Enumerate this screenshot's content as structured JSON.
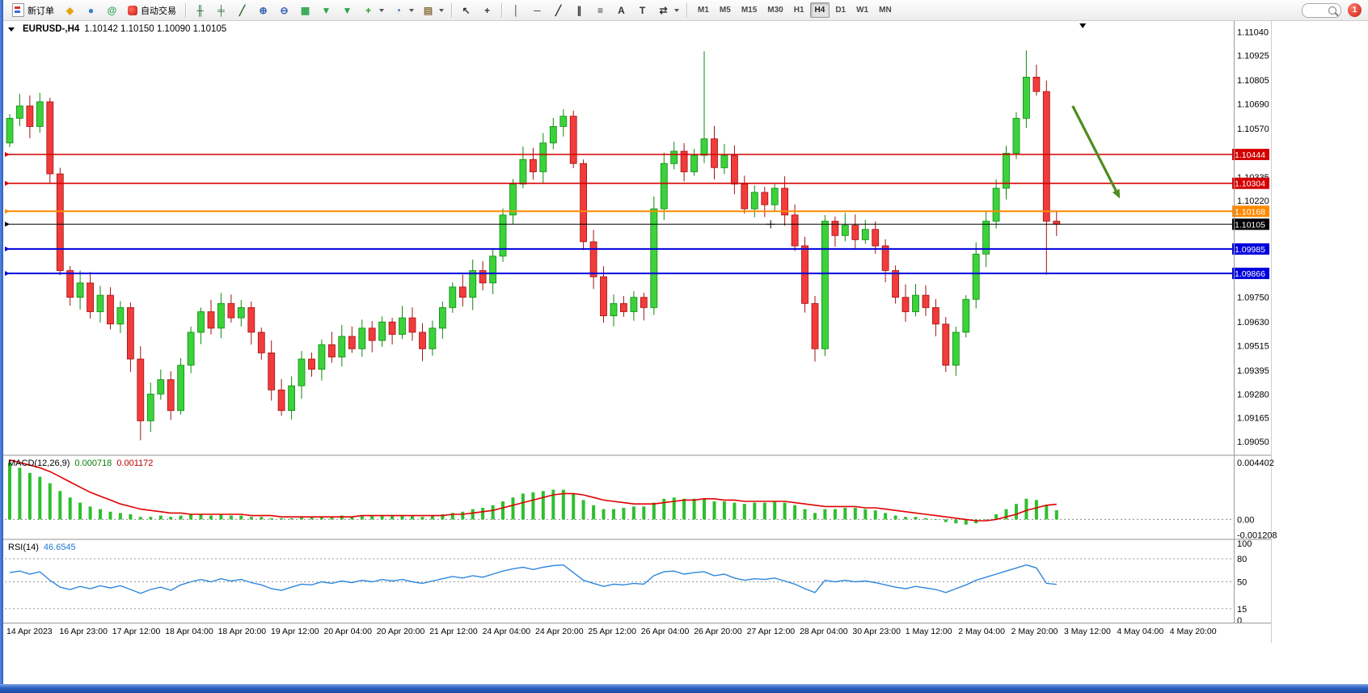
{
  "toolbar": {
    "new_order_label": "新订单",
    "autotrading_label": "自动交易",
    "quick_icons": [
      {
        "name": "metaeditor-icon",
        "glyph": "◆",
        "color": "#e3a50e"
      },
      {
        "name": "signals-icon",
        "glyph": "●",
        "color": "#2d7dd2"
      },
      {
        "name": "community-icon",
        "glyph": "@",
        "color": "#2da44e"
      }
    ],
    "chart_tools": [
      {
        "name": "bar-chart-icon",
        "glyph": "╫",
        "color": "#2f6b2f"
      },
      {
        "name": "candlestick-icon",
        "glyph": "╪",
        "color": "#2f6b2f"
      },
      {
        "name": "line-chart-icon",
        "glyph": "╱",
        "color": "#2f6b2f"
      },
      {
        "name": "zoom-in-icon",
        "glyph": "⊕",
        "color": "#2d5fb0"
      },
      {
        "name": "zoom-out-icon",
        "glyph": "⊖",
        "color": "#2d5fb0"
      },
      {
        "name": "tile-windows-icon",
        "glyph": "▦",
        "color": "#2da44e"
      },
      {
        "name": "auto-arrange-icon",
        "glyph": "▼",
        "color": "#2da44e"
      },
      {
        "name": "cascade-windows-icon",
        "glyph": "▼",
        "color": "#2da44e"
      },
      {
        "name": "indicators-add-icon",
        "glyph": "+",
        "color": "#1f9e1f",
        "caret": true
      },
      {
        "name": "periods-icon",
        "glyph": "◔",
        "color": "#2d5fb0",
        "caret": true
      },
      {
        "name": "templates-icon",
        "glyph": "▤",
        "color": "#8a6d3b",
        "caret": true
      }
    ],
    "cursor_tools": [
      {
        "name": "cursor-icon",
        "glyph": "↖",
        "color": "#333333"
      },
      {
        "name": "crosshair-icon",
        "glyph": "+",
        "color": "#333333"
      }
    ],
    "draw_tools": [
      {
        "name": "vertical-line-icon",
        "glyph": "│",
        "color": "#333333"
      },
      {
        "name": "horizontal-line-icon",
        "glyph": "─",
        "color": "#333333"
      },
      {
        "name": "trendline-icon",
        "glyph": "╱",
        "color": "#333333"
      },
      {
        "name": "channel-icon",
        "glyph": "∥",
        "color": "#333333"
      },
      {
        "name": "fibonacci-icon",
        "glyph": "≡",
        "color": "#333333"
      },
      {
        "name": "text-icon",
        "glyph": "A",
        "color": "#333333"
      },
      {
        "name": "text-label-icon",
        "glyph": "T",
        "color": "#333333"
      },
      {
        "name": "arrows-icon",
        "glyph": "⇄",
        "color": "#333333",
        "caret": true
      }
    ],
    "timeframes": [
      "M1",
      "M5",
      "M15",
      "M30",
      "H1",
      "H4",
      "D1",
      "W1",
      "MN"
    ],
    "active_timeframe": "H4",
    "notification_count": "1"
  },
  "chart_data": [
    {
      "type": "candlestick",
      "title": "EURUSD-,H4",
      "quote_line": "1.10142 1.10150 1.10090 1.10105",
      "ylim": [
        1.0901,
        1.11065
      ],
      "up_color": "#3bd23b",
      "up_stroke": "#0f8a0f",
      "down_color": "#f23b3b",
      "down_stroke": "#a31111",
      "first_open": 1.105,
      "closes": [
        1.1062,
        1.1068,
        1.1058,
        1.107,
        1.1035,
        1.0988,
        1.0975,
        1.0982,
        1.0968,
        1.0976,
        1.0962,
        1.097,
        1.0945,
        1.0915,
        1.0928,
        1.0935,
        1.092,
        1.0942,
        1.0958,
        1.0968,
        1.096,
        1.0972,
        1.0965,
        1.097,
        1.0958,
        1.0948,
        1.093,
        1.092,
        1.0932,
        1.0945,
        1.094,
        1.0952,
        1.0946,
        1.0956,
        1.095,
        1.096,
        1.0954,
        1.0963,
        1.0957,
        1.0965,
        1.0958,
        1.095,
        1.096,
        1.097,
        1.098,
        1.0975,
        1.0988,
        1.0982,
        1.0995,
        1.1015,
        1.103,
        1.1042,
        1.1036,
        1.105,
        1.1058,
        1.1063,
        1.104,
        1.1002,
        1.0985,
        1.0966,
        1.0972,
        1.0968,
        1.0975,
        1.097,
        1.1018,
        1.104,
        1.1046,
        1.1036,
        1.1044,
        1.1052,
        1.1038,
        1.1044,
        1.103,
        1.1018,
        1.1026,
        1.102,
        1.1028,
        1.1015,
        1.1,
        1.0972,
        1.095,
        1.1012,
        1.1005,
        1.101,
        1.1003,
        1.1008,
        1.1,
        1.0988,
        1.0975,
        1.0968,
        1.0976,
        1.097,
        1.0962,
        1.0942,
        1.0958,
        1.0974,
        1.0996,
        1.1012,
        1.1028,
        1.1045,
        1.1062,
        1.1082,
        1.1075,
        1.1012,
        1.10105
      ],
      "wick_overrides": [
        {
          "i": 4,
          "high": 1.1072
        },
        {
          "i": 13,
          "low": 1.09055
        },
        {
          "i": 69,
          "high": 1.10945
        },
        {
          "i": 101,
          "high": 1.1095
        },
        {
          "i": 103,
          "low": 1.0986
        }
      ],
      "y_ticks": [
        "1.11040",
        "1.10925",
        "1.10805",
        "1.10690",
        "1.10570",
        "1.10335",
        "1.10220",
        "1.09750",
        "1.09630",
        "1.09515",
        "1.09395",
        "1.09280",
        "1.09165",
        "1.09050"
      ],
      "hlines": [
        {
          "price": 1.10444,
          "label": "1.10444",
          "color": "#d40000",
          "width": 1.6
        },
        {
          "price": 1.10304,
          "label": "1.10304",
          "color": "#d40000",
          "width": 1.6
        },
        {
          "price": 1.10168,
          "label": "1.10168",
          "color": "#ff8a00",
          "width": 2
        },
        {
          "price": 1.10105,
          "label": "1.10105",
          "color": "#000000",
          "width": 1
        },
        {
          "price": 1.09985,
          "label": "1.09985",
          "color": "#0000dd",
          "width": 2
        },
        {
          "price": 1.09866,
          "label": "1.09866",
          "color": "#0000dd",
          "width": 2
        }
      ],
      "x_labels": [
        "14 Apr 2023",
        "16 Apr 23:00",
        "17 Apr 12:00",
        "18 Apr 04:00",
        "18 Apr 20:00",
        "19 Apr 12:00",
        "20 Apr 04:00",
        "20 Apr 20:00",
        "21 Apr 12:00",
        "24 Apr 04:00",
        "24 Apr 20:00",
        "25 Apr 12:00",
        "26 Apr 04:00",
        "26 Apr 20:00",
        "27 Apr 12:00",
        "28 Apr 04:00",
        "30 Apr 23:00",
        "1 May 12:00",
        "2 May 04:00",
        "2 May 20:00",
        "3 May 12:00",
        "4 May 04:00",
        "4 May 20:00"
      ],
      "annotations": {
        "trend_arrow": {
          "from_bar": 105.6,
          "from_price": 1.1068,
          "to_bar": 110.3,
          "to_price": 1.1023,
          "color": "#4e8c1f"
        },
        "triangle_marker_bar": 106.6,
        "cross_marker": {
          "bar": 75.6,
          "price": 1.10105
        }
      }
    },
    {
      "type": "bar",
      "title": "MACD(12,26,9)",
      "current_macd": "0.000718",
      "current_signal": "0.001172",
      "histogram_color": "#2fbf2f",
      "signal_color": "#e00000",
      "ylim": [
        -0.00135,
        0.00465
      ],
      "y_labels": [
        {
          "text": "0.004402",
          "value": 0.004402
        },
        {
          "text": "0.00",
          "value": 0
        },
        {
          "text": "-0.001208",
          "value": -0.001208
        }
      ],
      "histogram": [
        0.0044,
        0.004,
        0.0036,
        0.0033,
        0.0028,
        0.0022,
        0.0017,
        0.0013,
        0.001,
        0.0008,
        0.0006,
        0.0005,
        0.0004,
        0.0002,
        0.0002,
        0.0003,
        0.0002,
        0.0003,
        0.0004,
        0.0004,
        0.0003,
        0.0004,
        0.0003,
        0.0003,
        0.0002,
        0.0002,
        0.0001,
        0.0001,
        0.0001,
        0.0002,
        0.0002,
        0.0002,
        0.0002,
        0.0003,
        0.0002,
        0.0003,
        0.0003,
        0.0003,
        0.0003,
        0.0003,
        0.0003,
        0.0002,
        0.0003,
        0.0004,
        0.0005,
        0.0006,
        0.0008,
        0.0009,
        0.0011,
        0.0014,
        0.0017,
        0.002,
        0.0021,
        0.0022,
        0.0023,
        0.0023,
        0.002,
        0.0015,
        0.0011,
        0.0008,
        0.0008,
        0.0009,
        0.001,
        0.001,
        0.0013,
        0.0016,
        0.0017,
        0.0016,
        0.0016,
        0.0016,
        0.0014,
        0.0014,
        0.0013,
        0.0012,
        0.0013,
        0.0013,
        0.0014,
        0.0013,
        0.0011,
        0.0008,
        0.0005,
        0.0008,
        0.0008,
        0.0009,
        0.0009,
        0.0008,
        0.0007,
        0.0005,
        0.0003,
        0.0002,
        0.0002,
        0.0001,
        0.0,
        -0.0002,
        -0.0003,
        -0.0004,
        -0.0003,
        0.0,
        0.0004,
        0.0008,
        0.0012,
        0.0016,
        0.0015,
        0.0011,
        0.000718
      ],
      "signal": [
        0.0046,
        0.0044,
        0.0042,
        0.004,
        0.0037,
        0.0033,
        0.0029,
        0.0025,
        0.0021,
        0.0018,
        0.0015,
        0.0012,
        0.001,
        0.0008,
        0.0007,
        0.0006,
        0.0005,
        0.0005,
        0.0004,
        0.0004,
        0.0004,
        0.0004,
        0.0004,
        0.0004,
        0.0003,
        0.0003,
        0.0003,
        0.0002,
        0.0002,
        0.0002,
        0.0002,
        0.0002,
        0.0002,
        0.0002,
        0.0002,
        0.0003,
        0.0003,
        0.0003,
        0.0003,
        0.0003,
        0.0003,
        0.0003,
        0.0003,
        0.0003,
        0.0004,
        0.0004,
        0.0005,
        0.0006,
        0.0007,
        0.0009,
        0.0011,
        0.0013,
        0.0015,
        0.0017,
        0.0019,
        0.002,
        0.002,
        0.0019,
        0.0017,
        0.0015,
        0.0014,
        0.0013,
        0.0012,
        0.0012,
        0.0012,
        0.0013,
        0.0014,
        0.0015,
        0.0015,
        0.0016,
        0.0016,
        0.0015,
        0.0015,
        0.0014,
        0.0014,
        0.0014,
        0.0014,
        0.0014,
        0.0013,
        0.0012,
        0.0011,
        0.001,
        0.001,
        0.001,
        0.001,
        0.0009,
        0.0009,
        0.0008,
        0.0007,
        0.0006,
        0.0005,
        0.0004,
        0.0003,
        0.0002,
        0.0001,
        0.0,
        -0.0001,
        -0.0001,
        0.0,
        0.0002,
        0.0004,
        0.0007,
        0.0009,
        0.0011,
        0.001172
      ]
    },
    {
      "type": "line",
      "title": "RSI(14)",
      "current_value": "46.6545",
      "line_color": "#2e86de",
      "range": [
        0,
        100
      ],
      "level_lines": [
        80,
        50,
        15
      ],
      "axis_labels": [
        {
          "text": "100",
          "value": 100
        },
        {
          "text": "80",
          "value": 80
        },
        {
          "text": "50",
          "value": 50
        },
        {
          "text": "15",
          "value": 15
        },
        {
          "text": "0",
          "value": 0
        }
      ],
      "values": [
        62,
        64,
        60,
        63,
        52,
        43,
        40,
        44,
        41,
        45,
        42,
        45,
        40,
        35,
        40,
        43,
        39,
        46,
        50,
        53,
        50,
        54,
        51,
        53,
        49,
        46,
        41,
        39,
        43,
        47,
        46,
        50,
        48,
        51,
        49,
        52,
        50,
        53,
        51,
        53,
        50,
        48,
        51,
        54,
        57,
        55,
        58,
        56,
        60,
        64,
        67,
        69,
        66,
        69,
        71,
        72,
        62,
        52,
        48,
        44,
        47,
        46,
        48,
        47,
        58,
        63,
        64,
        60,
        62,
        63,
        58,
        60,
        55,
        52,
        54,
        53,
        55,
        51,
        47,
        41,
        36,
        52,
        50,
        52,
        50,
        51,
        49,
        46,
        43,
        41,
        44,
        42,
        40,
        36,
        41,
        46,
        52,
        56,
        60,
        64,
        68,
        72,
        68,
        48,
        46.65
      ]
    }
  ]
}
